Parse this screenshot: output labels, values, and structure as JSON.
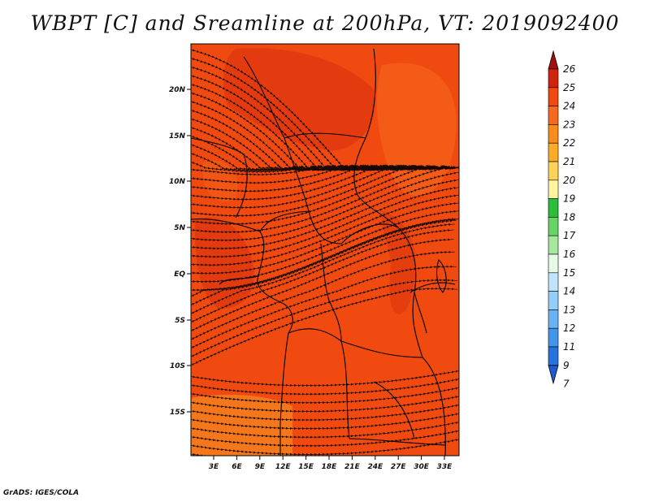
{
  "title": "WBPT [C] and Sreamline at 200hPa, VT: 2019092400",
  "credit": "GrADS: IGES/COLA",
  "map": {
    "lat_ticks": [
      "20N",
      "15N",
      "10N",
      "5N",
      "EQ",
      "5S",
      "10S",
      "15S"
    ],
    "lon_ticks": [
      "3E",
      "6E",
      "9E",
      "12E",
      "15E",
      "18E",
      "21E",
      "24E",
      "27E",
      "30E",
      "33E"
    ],
    "colors": {
      "base": "#f04a10",
      "darker": "#d8300e",
      "lighter": "#f56a1e",
      "southern_band": "#f58a22",
      "streamline": "#1a0a05",
      "border": "#000000"
    }
  },
  "colorbar": {
    "labels": [
      "26",
      "25",
      "24",
      "23",
      "22",
      "21",
      "20",
      "19",
      "18",
      "17",
      "16",
      "15",
      "14",
      "13",
      "12",
      "11",
      "9",
      "7"
    ],
    "colors": [
      "#a50f0f",
      "#d2240c",
      "#f04a10",
      "#f56a1e",
      "#fa8c1e",
      "#fcaa28",
      "#fcd25a",
      "#fff5a0",
      "#2bbf39",
      "#68d465",
      "#a6e69e",
      "#e6fae6",
      "#c0e4fa",
      "#96cdf8",
      "#69b3f4",
      "#4196eb",
      "#2572e0",
      "#1e5ad2"
    ]
  }
}
